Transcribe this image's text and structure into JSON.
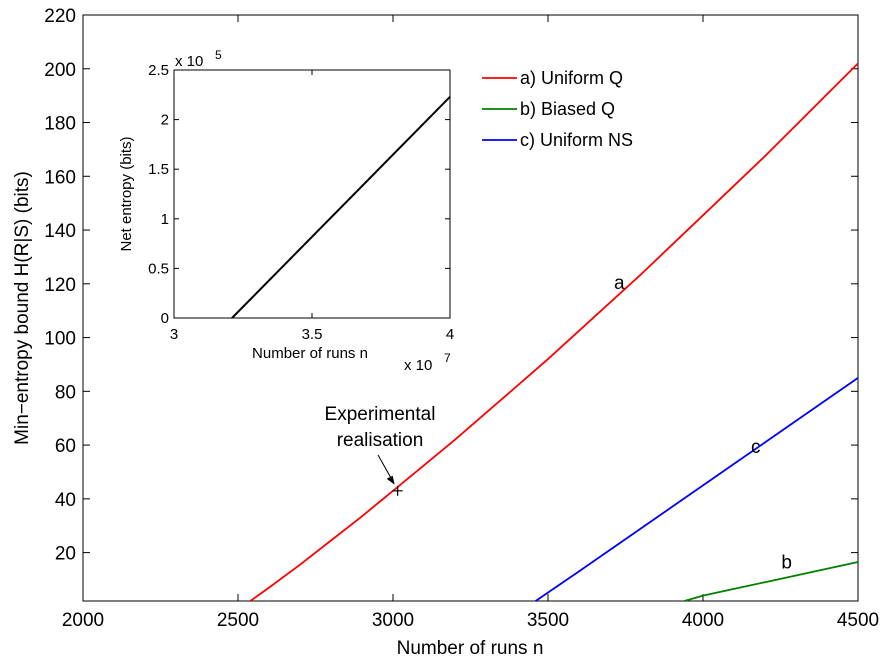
{
  "chart_data": [
    {
      "type": "line",
      "title": "",
      "xlabel": "Number of runs n",
      "ylabel": "Min−entropy bound H(R|S) (bits)",
      "xlim": [
        2000,
        4500
      ],
      "ylim": [
        2,
        220
      ],
      "xticks": [
        2000,
        2500,
        3000,
        3500,
        4000,
        4500
      ],
      "yticks": [
        20,
        40,
        60,
        80,
        100,
        120,
        140,
        160,
        180,
        200,
        220
      ],
      "grid": false,
      "legend_position": "top-right",
      "series": [
        {
          "name": "a) Uniform Q",
          "color": "#e41a1c",
          "line_color": "#ff0000",
          "label": "a",
          "x": [
            2540,
            2600,
            2700,
            2800,
            2900,
            3000,
            3100,
            3200,
            3300,
            3400,
            3500,
            3600,
            3700,
            3800,
            3900,
            4000,
            4100,
            4200,
            4300,
            4400,
            4500
          ],
          "y": [
            2,
            7,
            15.5,
            24.5,
            33.5,
            43,
            52.5,
            62,
            72,
            82,
            92,
            102.5,
            113,
            123.5,
            134.5,
            145.5,
            156.5,
            167.5,
            179,
            190.5,
            202
          ]
        },
        {
          "name": "b) Biased Q",
          "color": "#008000",
          "label": "b",
          "x": [
            3940,
            4000,
            4100,
            4200,
            4300,
            4400,
            4500
          ],
          "y": [
            2,
            4,
            6.5,
            9,
            11.5,
            14,
            16.5
          ]
        },
        {
          "name": "c) Uniform NS",
          "color": "#0000ff",
          "label": "c",
          "x": [
            3460,
            3600,
            3700,
            3800,
            3900,
            4000,
            4100,
            4200,
            4300,
            4400,
            4500
          ],
          "y": [
            2,
            13,
            21,
            29,
            37,
            45,
            53,
            61,
            69,
            77,
            85
          ]
        }
      ],
      "annotations": [
        {
          "text_lines": [
            "Experimental",
            "realisation"
          ],
          "point": {
            "x": 3015,
            "y": 43
          },
          "marker": "+"
        }
      ]
    },
    {
      "type": "line",
      "title": "",
      "xlabel": "Number of runs n",
      "ylabel": "Net entropy (bits)",
      "xlim": [
        3,
        4
      ],
      "ylim": [
        0,
        2.5
      ],
      "x_scale_label": "x 10",
      "x_scale_exp": "7",
      "y_scale_label": "x 10",
      "y_scale_exp": "5",
      "xticks": [
        "3",
        "3.5",
        "4"
      ],
      "yticks": [
        "0",
        "0.5",
        "1",
        "1.5",
        "2",
        "2.5"
      ],
      "grid": false,
      "series": [
        {
          "color": "#000000",
          "x": [
            3.21,
            4.0
          ],
          "y": [
            0,
            2.23
          ]
        }
      ]
    }
  ]
}
